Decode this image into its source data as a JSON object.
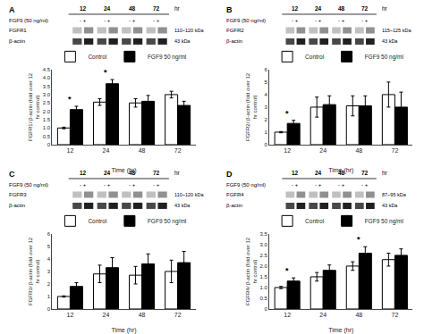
{
  "chart_data": [
    {
      "type": "bar",
      "title": "A",
      "categories": [
        "12",
        "24",
        "48",
        "72"
      ],
      "xlabel": "Time (hr)",
      "ylabel": "FGFR1/ β-actin (fold over 12\nhr control)",
      "ylim": [
        0,
        4.5
      ],
      "yticks": [
        0,
        0.5,
        {
          "value": 1,
          "label": "1.0"
        },
        1.5,
        {
          "value": 2,
          "label": "2.0"
        },
        2.5,
        {
          "value": 3,
          "label": "3.0"
        },
        3.5,
        {
          "value": 4,
          "label": "4.0"
        },
        4.5
      ],
      "series": [
        {
          "name": "Control",
          "color": "white",
          "values": [
            1.0,
            2.55,
            2.5,
            3.0
          ],
          "errors": [
            0.05,
            0.2,
            0.25,
            0.2
          ]
        },
        {
          "name": "FGF9 50 ng/ml",
          "color": "black",
          "values": [
            2.1,
            3.65,
            2.6,
            2.35
          ],
          "errors": [
            0.2,
            0.25,
            0.35,
            0.25
          ]
        }
      ],
      "annotations": [
        {
          "text": "*",
          "x": "12"
        },
        {
          "text": "*",
          "x": "24"
        }
      ],
      "blot": {
        "time_unit": "hr",
        "treatment": "FGF9 (50 ng/ml)",
        "lanes": [
          "- +",
          "- +",
          "- +",
          "- +"
        ],
        "rows": [
          {
            "label": "FGFR1",
            "size": "110~120 kDa"
          },
          {
            "label": "β-actin",
            "size": "43 kDa"
          }
        ]
      },
      "grid": false,
      "legend": "upper left"
    },
    {
      "type": "bar",
      "title": "B",
      "categories": [
        "12",
        "24",
        "48",
        "72"
      ],
      "xlabel": "Time (hr)",
      "ylabel": "FGFR2/ β-actin (fold over 12\nhr control)",
      "ylim": [
        0,
        6
      ],
      "yticks": [
        0,
        1,
        2,
        3,
        4,
        5,
        6
      ],
      "series": [
        {
          "name": "Control",
          "color": "white",
          "values": [
            1.0,
            3.0,
            3.1,
            4.0
          ],
          "errors": [
            0.05,
            0.8,
            0.8,
            1.0
          ]
        },
        {
          "name": "FGF9 50 ng/ml",
          "color": "black",
          "values": [
            1.7,
            3.2,
            3.1,
            3.0
          ],
          "errors": [
            0.25,
            0.7,
            0.8,
            1.2
          ]
        }
      ],
      "annotations": [
        {
          "text": "*",
          "x": "12"
        }
      ],
      "blot": {
        "time_unit": "hr",
        "treatment": "FGF9 (50 ng/ml)",
        "lanes": [
          "- +",
          "- +",
          "- +",
          "- +"
        ],
        "rows": [
          {
            "label": "FGFR2",
            "size": "115~125 kDa"
          },
          {
            "label": "β-actin",
            "size": "43 kDa"
          }
        ]
      },
      "grid": false,
      "legend": "upper left"
    },
    {
      "type": "bar",
      "title": "C",
      "categories": [
        "12",
        "24",
        "48",
        "72"
      ],
      "xlabel": "Time (hr)",
      "ylabel": "FGFR3/ β-actin (fold over 12\nhr control)",
      "ylim": [
        0,
        6
      ],
      "yticks": [
        0,
        1,
        2,
        3,
        4,
        5,
        6
      ],
      "series": [
        {
          "name": "Control",
          "color": "white",
          "values": [
            1.0,
            2.8,
            2.7,
            3.0
          ],
          "errors": [
            0.05,
            0.7,
            0.7,
            0.9
          ]
        },
        {
          "name": "FGF9 50 ng/ml",
          "color": "black",
          "values": [
            1.8,
            3.3,
            3.6,
            3.7
          ],
          "errors": [
            0.3,
            0.8,
            0.8,
            0.9
          ]
        }
      ],
      "annotations": [],
      "blot": {
        "time_unit": "hr",
        "treatment": "FGF9 (50 ng/ml)",
        "lanes": [
          "- +",
          "- +",
          "- +",
          "- +"
        ],
        "rows": [
          {
            "label": "FGFR3",
            "size": "110~120 kDa"
          },
          {
            "label": "β-actin",
            "size": "43 kDa"
          }
        ]
      },
      "grid": false,
      "legend": "upper left"
    },
    {
      "type": "bar",
      "title": "D",
      "categories": [
        "12",
        "24",
        "48",
        "72"
      ],
      "xlabel": "Time (hr)",
      "ylabel": "FGFR4/ β-actin (fold over 12\nhr control)",
      "ylim": [
        0,
        3.5
      ],
      "yticks": [
        0,
        0.5,
        {
          "value": 1,
          "label": "1.0"
        },
        1.5,
        {
          "value": 2,
          "label": "2.0"
        },
        2.5,
        {
          "value": 3,
          "label": "3.0"
        },
        3.5
      ],
      "series": [
        {
          "name": "Control",
          "color": "white",
          "values": [
            1.0,
            1.5,
            2.0,
            2.3
          ],
          "errors": [
            0.05,
            0.2,
            0.2,
            0.3
          ]
        },
        {
          "name": "FGF9 50 ng/ml",
          "color": "black",
          "values": [
            1.3,
            1.8,
            2.6,
            2.5
          ],
          "errors": [
            0.15,
            0.25,
            0.3,
            0.3
          ]
        }
      ],
      "annotations": [
        {
          "text": "*",
          "x": "12"
        },
        {
          "text": "*",
          "x": "48"
        }
      ],
      "blot": {
        "time_unit": "hr",
        "treatment": "FGF9 (50 ng/ml)",
        "lanes": [
          "- +",
          "- +",
          "- +",
          "- +"
        ],
        "rows": [
          {
            "label": "FGFR4",
            "size": "87~95 kDa"
          },
          {
            "label": "β-actin",
            "size": "43 kDa"
          }
        ]
      },
      "grid": false,
      "legend": "upper left"
    }
  ]
}
